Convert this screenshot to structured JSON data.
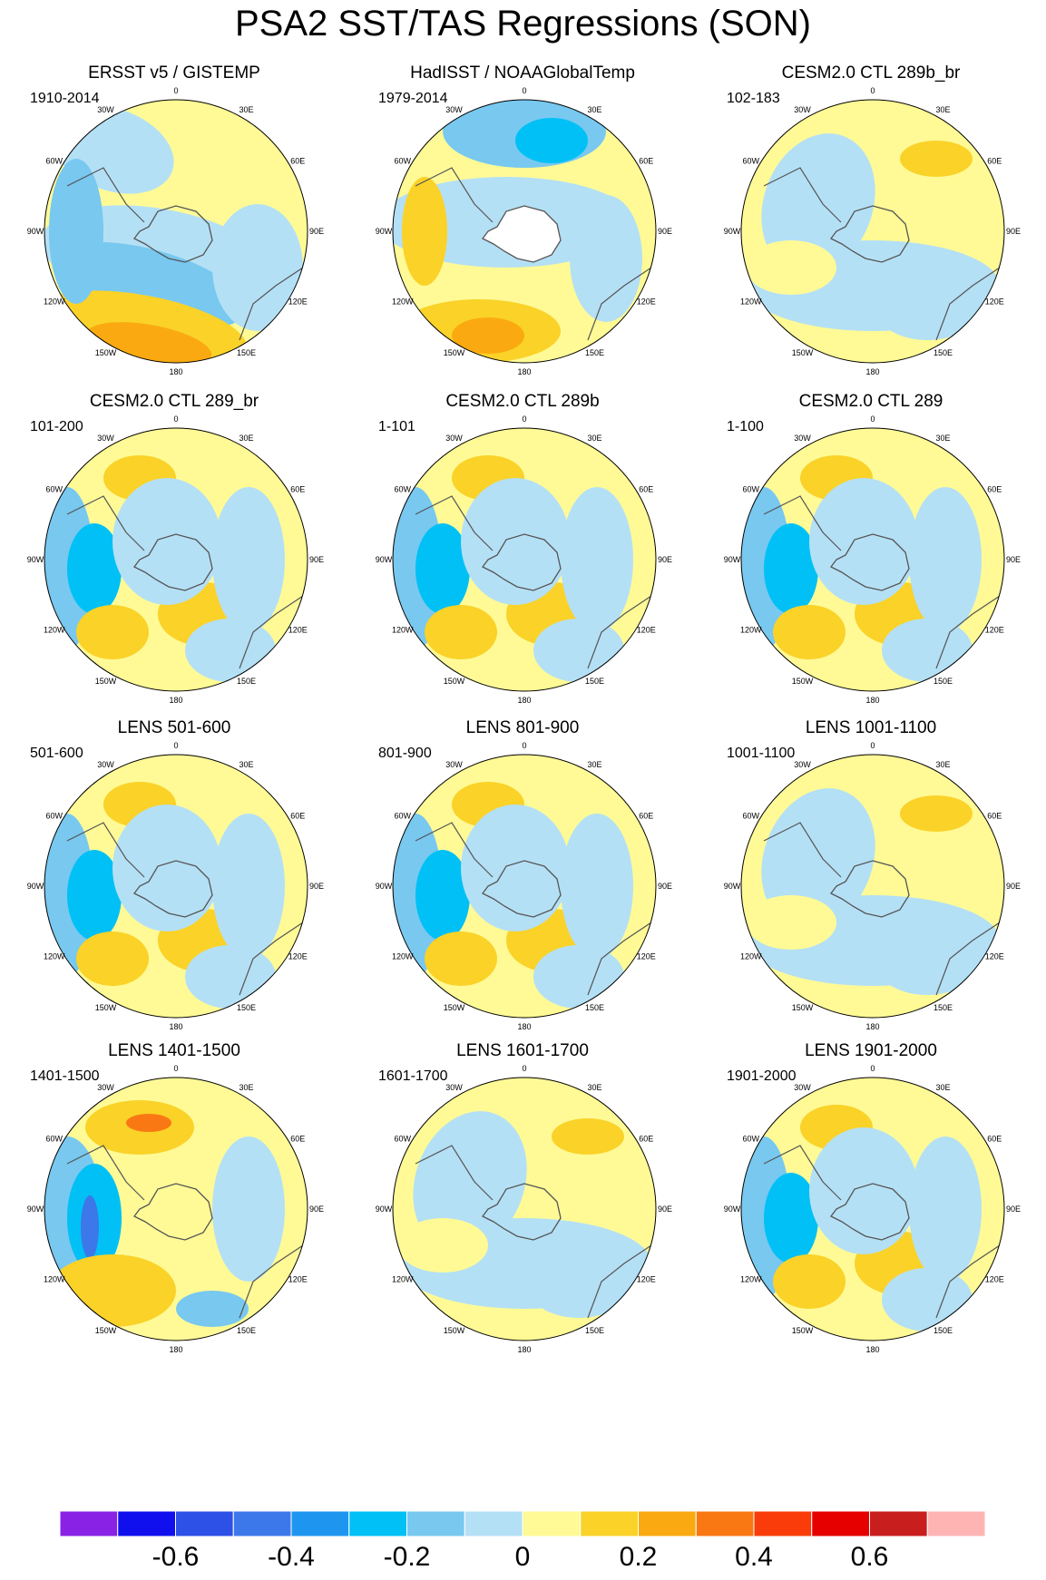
{
  "title": "PSA2 SST/TAS Regressions (SON)",
  "lon_labels": [
    "0",
    "30E",
    "60E",
    "90E",
    "120E",
    "150E",
    "180",
    "150W",
    "120W",
    "90W",
    "60W",
    "30W"
  ],
  "panels": [
    {
      "title": "ERSST v5 / GISTEMP",
      "period": "1910-2014",
      "style": "obs1"
    },
    {
      "title": "HadISST / NOAAGlobalTemp",
      "period": "1979-2014",
      "style": "obs2"
    },
    {
      "title": "CESM2.0 CTL 289b_br",
      "period": "102-183",
      "style": "weak"
    },
    {
      "title": "CESM2.0 CTL 289_br",
      "period": "101-200",
      "style": "model"
    },
    {
      "title": "CESM2.0 CTL 289b",
      "period": "1-101",
      "style": "model"
    },
    {
      "title": "CESM2.0 CTL 289",
      "period": "1-100",
      "style": "model"
    },
    {
      "title": "LENS 501-600",
      "period": "501-600",
      "style": "model"
    },
    {
      "title": "LENS 801-900",
      "period": "801-900",
      "style": "model"
    },
    {
      "title": "LENS 1001-1100",
      "period": "1001-1100",
      "style": "weak"
    },
    {
      "title": "LENS 1401-1500",
      "period": "1401-1500",
      "style": "strong"
    },
    {
      "title": "LENS 1601-1700",
      "period": "1601-1700",
      "style": "weak"
    },
    {
      "title": "LENS 1901-2000",
      "period": "1901-2000",
      "style": "model"
    }
  ],
  "colorbar": {
    "colors": [
      "#8a22e6",
      "#1010ee",
      "#2d50e6",
      "#3c78ea",
      "#1e96f0",
      "#00c0f5",
      "#78c8f0",
      "#b4e0f5",
      "#fffa96",
      "#fad228",
      "#faaa10",
      "#fa7814",
      "#fa3c0a",
      "#e60000",
      "#c81e1e",
      "#ffb4b4"
    ],
    "tick_labels": [
      "-0.6",
      "-0.4",
      "-0.2",
      "0",
      "0.2",
      "0.4",
      "0.6"
    ]
  }
}
